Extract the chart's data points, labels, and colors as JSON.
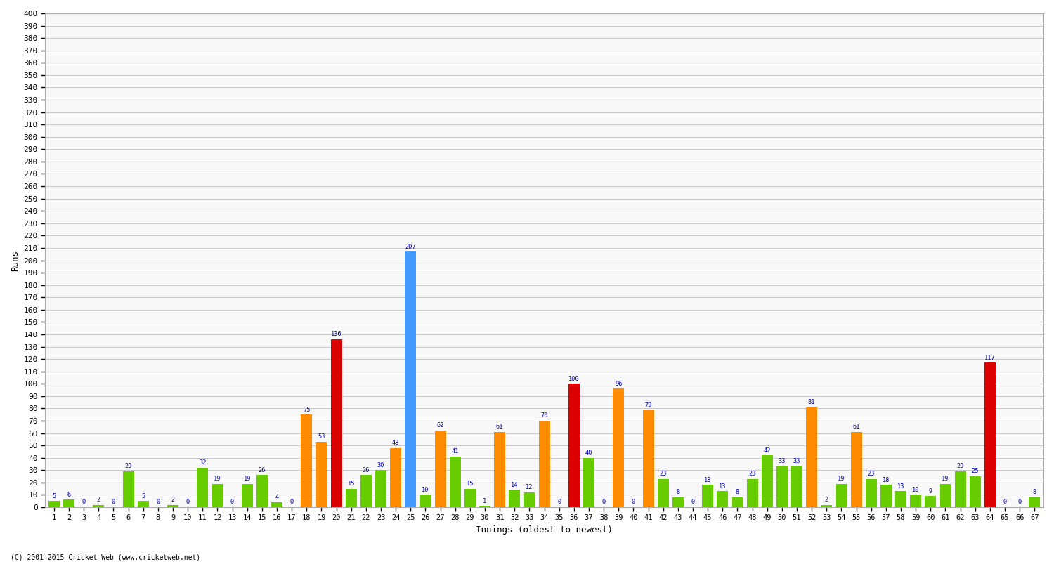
{
  "xlabel": "Innings (oldest to newest)",
  "ylabel": "Runs",
  "ylim": [
    0,
    400
  ],
  "yticks": [
    0,
    10,
    20,
    30,
    40,
    50,
    60,
    70,
    80,
    90,
    100,
    110,
    120,
    130,
    140,
    150,
    160,
    170,
    180,
    190,
    200,
    210,
    220,
    230,
    240,
    250,
    260,
    270,
    280,
    290,
    300,
    310,
    320,
    330,
    340,
    350,
    360,
    370,
    380,
    390,
    400
  ],
  "innings": [
    1,
    2,
    3,
    4,
    5,
    6,
    7,
    8,
    9,
    10,
    11,
    12,
    13,
    14,
    15,
    16,
    17,
    18,
    19,
    20,
    21,
    22,
    23,
    24,
    25,
    26,
    27,
    28,
    29,
    30,
    31,
    32,
    33,
    34,
    35,
    36,
    37,
    38,
    39,
    40,
    41,
    42,
    43,
    44,
    45,
    46,
    47,
    48,
    49,
    50,
    51,
    52,
    53,
    54,
    55,
    56,
    57,
    58,
    59,
    60,
    61,
    62,
    63,
    64,
    65,
    66,
    67
  ],
  "values": [
    5,
    6,
    0,
    2,
    0,
    29,
    5,
    0,
    2,
    0,
    32,
    19,
    0,
    19,
    26,
    4,
    0,
    75,
    53,
    136,
    15,
    26,
    30,
    48,
    207,
    10,
    62,
    41,
    15,
    1,
    61,
    14,
    12,
    70,
    0,
    100,
    40,
    0,
    96,
    0,
    79,
    23,
    8,
    0,
    18,
    13,
    8,
    23,
    42,
    33,
    33,
    81,
    2,
    19,
    61,
    23,
    18,
    13,
    10,
    9,
    19,
    29,
    25,
    117,
    0,
    0,
    8
  ],
  "colors_list": [
    "green",
    "green",
    "green",
    "green",
    "green",
    "green",
    "green",
    "green",
    "green",
    "green",
    "green",
    "green",
    "green",
    "green",
    "green",
    "green",
    "green",
    "orange",
    "orange",
    "red",
    "green",
    "green",
    "green",
    "orange",
    "blue",
    "green",
    "orange",
    "green",
    "green",
    "green",
    "orange",
    "green",
    "green",
    "orange",
    "green",
    "red",
    "green",
    "green",
    "orange",
    "green",
    "orange",
    "green",
    "green",
    "green",
    "green",
    "green",
    "green",
    "green",
    "green",
    "green",
    "green",
    "orange",
    "green",
    "green",
    "orange",
    "green",
    "green",
    "green",
    "green",
    "green",
    "green",
    "green",
    "green",
    "red",
    "green",
    "green",
    "green"
  ],
  "color_green": "#66cc00",
  "color_orange": "#ff8c00",
  "color_red": "#dd0000",
  "color_blue": "#4499ff",
  "bg_color": "#ffffff",
  "plot_bg_color": "#f8f8f8",
  "grid_color": "#c8c8c8",
  "title_color": "#000066",
  "label_color": "#0000bb",
  "axis_label_color": "#000000",
  "footer": "(C) 2001-2015 Cricket Web (www.cricketweb.net)"
}
